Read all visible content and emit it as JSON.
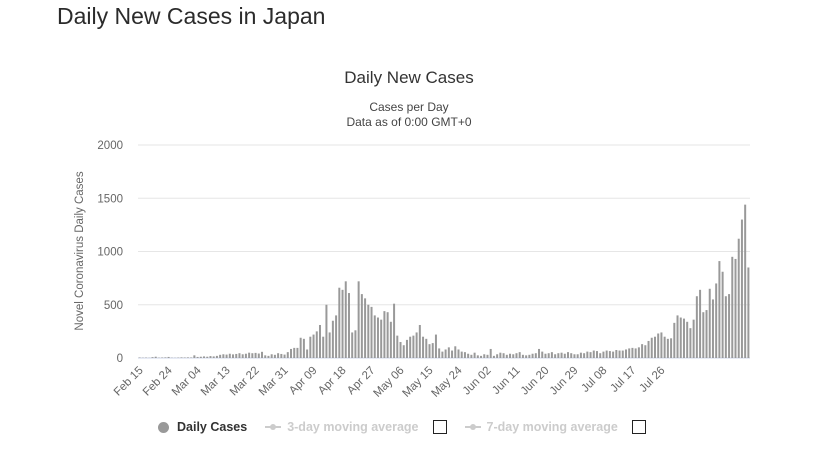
{
  "page": {
    "title": "Daily New Cases in Japan"
  },
  "legend": {
    "daily": "Daily Cases",
    "ma3": "3-day moving average",
    "ma7": "7-day moving average"
  },
  "colors": {
    "bar": "#999999",
    "grid": "#e6e6e6",
    "axis_text": "#666666",
    "title_text": "#333333",
    "legend_inactive": "#cccccc"
  },
  "chart_data": {
    "type": "bar",
    "title": "Daily New Cases",
    "subtitle": [
      "Cases per Day",
      "Data as of 0:00 GMT+0"
    ],
    "xlabel": "",
    "ylabel": "Novel Coronavirus Daily Cases",
    "ylim": [
      0,
      2000
    ],
    "yticks": [
      0,
      500,
      1000,
      1500,
      2000
    ],
    "grid": true,
    "legend_position": "bottom",
    "x_tick_labels": [
      "Feb 15",
      "Feb 24",
      "Mar 04",
      "Mar 13",
      "Mar 22",
      "Mar 31",
      "Apr 09",
      "Apr 18",
      "Apr 27",
      "May 06",
      "May 15",
      "May 24",
      "Jun 02",
      "Jun 11",
      "Jun 20",
      "Jun 29",
      "Jul 08",
      "Jul 17",
      "Jul 26"
    ],
    "start_date": "Feb 15",
    "series": [
      {
        "name": "Daily Cases",
        "values": [
          5,
          3,
          4,
          2,
          8,
          12,
          3,
          5,
          6,
          10,
          3,
          2,
          4,
          6,
          5,
          6,
          5,
          25,
          10,
          12,
          15,
          12,
          18,
          15,
          20,
          30,
          35,
          32,
          40,
          34,
          38,
          45,
          35,
          40,
          50,
          45,
          48,
          42,
          58,
          25,
          20,
          35,
          30,
          45,
          38,
          32,
          55,
          85,
          95,
          95,
          190,
          180,
          80,
          200,
          220,
          250,
          310,
          200,
          500,
          240,
          350,
          400,
          660,
          640,
          720,
          610,
          240,
          260,
          720,
          600,
          560,
          500,
          480,
          400,
          380,
          360,
          440,
          430,
          340,
          510,
          210,
          150,
          120,
          170,
          200,
          210,
          240,
          310,
          200,
          180,
          130,
          140,
          220,
          90,
          60,
          80,
          100,
          70,
          110,
          80,
          60,
          55,
          40,
          30,
          50,
          25,
          20,
          35,
          30,
          85,
          20,
          35,
          50,
          45,
          30,
          40,
          35,
          45,
          55,
          30,
          25,
          30,
          40,
          45,
          85,
          60,
          40,
          45,
          55,
          35,
          45,
          50,
          40,
          55,
          45,
          35,
          35,
          50,
          45,
          60,
          55,
          70,
          65,
          45,
          60,
          70,
          65,
          60,
          75,
          70,
          70,
          80,
          90,
          95,
          90,
          100,
          130,
          120,
          160,
          190,
          200,
          230,
          240,
          200,
          180,
          185,
          330,
          400,
          380,
          370,
          340,
          280,
          360,
          580,
          640,
          430,
          450,
          650,
          550,
          700,
          910,
          810,
          580,
          600,
          950,
          930,
          1120,
          1300,
          1440,
          850
        ]
      }
    ]
  }
}
